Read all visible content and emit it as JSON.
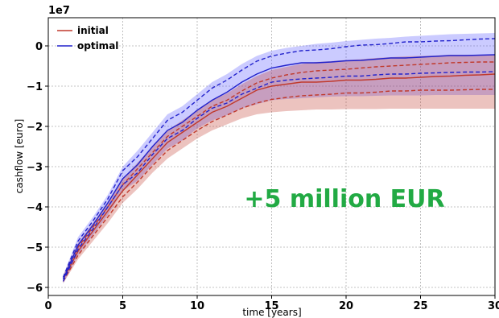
{
  "chart_data": {
    "type": "line",
    "xlabel": "time [years]",
    "ylabel": "cashflow [euro]",
    "y_multiplier_label": "1e7",
    "xlim": [
      0,
      30
    ],
    "ylim": [
      -6.2,
      0.7
    ],
    "xticks": [
      0,
      5,
      10,
      15,
      20,
      25,
      30
    ],
    "yticks": [
      0,
      -1,
      -2,
      -3,
      -4,
      -5,
      -6
    ],
    "grid": true,
    "legend_position": "top-left",
    "annotation": "+5 million EUR",
    "annotation_color": "#22aa44",
    "x": [
      1,
      2,
      3,
      4,
      5,
      6,
      7,
      8,
      9,
      10,
      11,
      12,
      13,
      14,
      15,
      16,
      17,
      18,
      19,
      20,
      21,
      22,
      23,
      24,
      25,
      26,
      27,
      28,
      29,
      30
    ],
    "series": [
      {
        "name": "initial",
        "color": "#c0392b",
        "band_color": "#c0392b",
        "mean": [
          -5.8,
          -5.1,
          -4.6,
          -4.1,
          -3.6,
          -3.2,
          -2.8,
          -2.4,
          -2.15,
          -1.9,
          -1.65,
          -1.5,
          -1.3,
          -1.1,
          -1.0,
          -0.95,
          -0.9,
          -0.9,
          -0.88,
          -0.85,
          -0.85,
          -0.83,
          -0.8,
          -0.8,
          -0.78,
          -0.76,
          -0.75,
          -0.73,
          -0.72,
          -0.7
        ],
        "upper": [
          -5.75,
          -5.0,
          -4.5,
          -4.0,
          -3.45,
          -3.05,
          -2.65,
          -2.25,
          -2.0,
          -1.75,
          -1.5,
          -1.35,
          -1.12,
          -0.92,
          -0.8,
          -0.72,
          -0.66,
          -0.62,
          -0.6,
          -0.58,
          -0.55,
          -0.52,
          -0.5,
          -0.48,
          -0.46,
          -0.44,
          -0.42,
          -0.41,
          -0.4,
          -0.4
        ],
        "lower": [
          -5.85,
          -5.2,
          -4.72,
          -4.25,
          -3.75,
          -3.38,
          -2.98,
          -2.6,
          -2.35,
          -2.1,
          -1.88,
          -1.72,
          -1.55,
          -1.42,
          -1.33,
          -1.28,
          -1.24,
          -1.22,
          -1.2,
          -1.17,
          -1.17,
          -1.15,
          -1.12,
          -1.12,
          -1.1,
          -1.1,
          -1.1,
          -1.09,
          -1.08,
          -1.08
        ],
        "band_upper": [
          -5.7,
          -4.9,
          -4.4,
          -3.9,
          -3.3,
          -2.9,
          -2.5,
          -2.1,
          -1.85,
          -1.6,
          -1.35,
          -1.18,
          -0.95,
          -0.75,
          -0.6,
          -0.52,
          -0.45,
          -0.4,
          -0.38,
          -0.35,
          -0.33,
          -0.3,
          -0.28,
          -0.26,
          -0.25,
          -0.24,
          -0.22,
          -0.22,
          -0.22,
          -0.22
        ],
        "band_lower": [
          -5.9,
          -5.3,
          -4.85,
          -4.4,
          -3.9,
          -3.55,
          -3.15,
          -2.8,
          -2.55,
          -2.3,
          -2.1,
          -1.95,
          -1.8,
          -1.7,
          -1.65,
          -1.62,
          -1.6,
          -1.58,
          -1.58,
          -1.57,
          -1.57,
          -1.57,
          -1.56,
          -1.56,
          -1.56,
          -1.56,
          -1.56,
          -1.56,
          -1.56,
          -1.56
        ]
      },
      {
        "name": "optimal",
        "color": "#2222cc",
        "band_color": "#4444ff",
        "mean": [
          -5.8,
          -4.95,
          -4.45,
          -3.9,
          -3.3,
          -2.95,
          -2.5,
          -2.1,
          -1.9,
          -1.6,
          -1.35,
          -1.15,
          -0.9,
          -0.7,
          -0.55,
          -0.48,
          -0.42,
          -0.42,
          -0.4,
          -0.37,
          -0.36,
          -0.33,
          -0.3,
          -0.3,
          -0.28,
          -0.26,
          -0.24,
          -0.24,
          -0.23,
          -0.22
        ],
        "upper": [
          -5.75,
          -4.85,
          -4.35,
          -3.8,
          -3.1,
          -2.75,
          -2.3,
          -1.85,
          -1.65,
          -1.35,
          -1.05,
          -0.85,
          -0.6,
          -0.38,
          -0.25,
          -0.18,
          -0.12,
          -0.1,
          -0.07,
          -0.02,
          0.02,
          0.03,
          0.06,
          0.1,
          0.1,
          0.12,
          0.13,
          0.15,
          0.17,
          0.18
        ],
        "lower": [
          -5.85,
          -5.05,
          -4.55,
          -4.0,
          -3.45,
          -3.15,
          -2.7,
          -2.3,
          -2.1,
          -1.8,
          -1.55,
          -1.42,
          -1.2,
          -1.05,
          -0.9,
          -0.85,
          -0.82,
          -0.8,
          -0.78,
          -0.75,
          -0.75,
          -0.72,
          -0.7,
          -0.7,
          -0.68,
          -0.67,
          -0.66,
          -0.65,
          -0.65,
          -0.64
        ],
        "band_upper": [
          -5.7,
          -4.75,
          -4.25,
          -3.7,
          -3.0,
          -2.6,
          -2.15,
          -1.7,
          -1.5,
          -1.2,
          -0.9,
          -0.7,
          -0.45,
          -0.25,
          -0.12,
          -0.05,
          0.0,
          0.05,
          0.08,
          0.12,
          0.15,
          0.18,
          0.2,
          0.23,
          0.25,
          0.27,
          0.29,
          0.3,
          0.31,
          0.32
        ],
        "band_lower": [
          -5.9,
          -5.2,
          -4.7,
          -4.2,
          -3.6,
          -3.35,
          -2.95,
          -2.55,
          -2.35,
          -2.05,
          -1.85,
          -1.72,
          -1.55,
          -1.45,
          -1.35,
          -1.32,
          -1.3,
          -1.28,
          -1.26,
          -1.25,
          -1.25,
          -1.24,
          -1.23,
          -1.23,
          -1.23,
          -1.22,
          -1.22,
          -1.22,
          -1.22,
          -1.22
        ]
      }
    ]
  }
}
